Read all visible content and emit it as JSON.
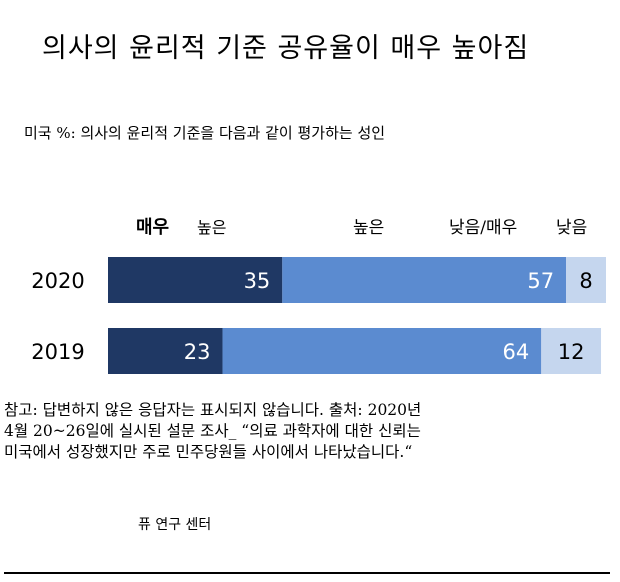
{
  "title": "의사의 윤리적 기준 공유율이 매우 높아짐",
  "subtitle": "미국 %: 의사의 윤리적 기준을 다음과 같이 평가하는 성인",
  "chart_data": {
    "type": "bar",
    "orientation": "horizontal",
    "stacked": true,
    "categories": [
      "2020",
      "2019"
    ],
    "series": [
      {
        "name": "매우 높은",
        "values": [
          35,
          23
        ],
        "color": "#1f3864"
      },
      {
        "name": "높은",
        "values": [
          57,
          64
        ],
        "color": "#5b8bd0"
      },
      {
        "name": "낮음/매우 낮음",
        "values": [
          8,
          12
        ],
        "color": "#c5d6ee"
      }
    ],
    "legend_labels": {
      "very_high_1": "매우",
      "very_high_2": "높은",
      "high": "높은",
      "low_1": "낮음/매우",
      "low_2": "낮음"
    },
    "xlim": [
      0,
      100
    ],
    "grid": false
  },
  "notes": [
    "참고: 답변하지 않은 응답자는 표시되지 않습니다. 출처: 2020년",
    "4월 20~26일에 실시된 설문 조사_ “의료 과학자에 대한 신뢰는",
    "미국에서 성장했지만 주로 민주당원들 사이에서 나타났습니다.“"
  ],
  "source": "퓨 연구 센터"
}
